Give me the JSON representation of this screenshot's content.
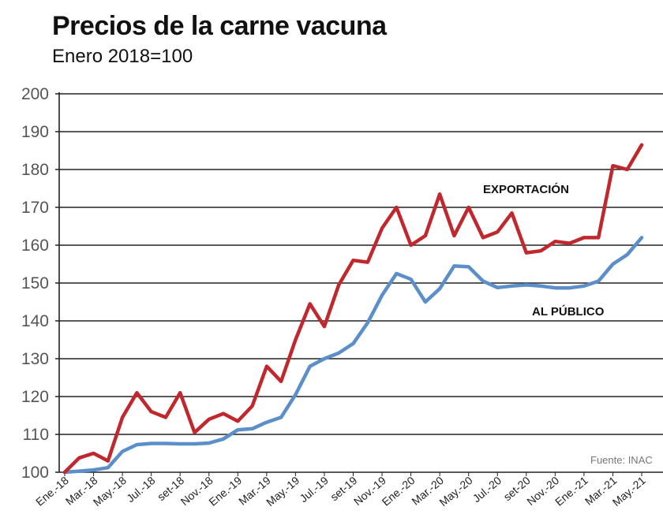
{
  "chart_data": {
    "type": "line",
    "title": "Precios de la carne vacuna",
    "subtitle": "Enero 2018=100",
    "source": "Fuente: INAC",
    "ylim": [
      100,
      200
    ],
    "yticks": [
      100,
      110,
      120,
      130,
      140,
      150,
      160,
      170,
      180,
      190,
      200
    ],
    "grid": true,
    "x_labels": [
      "Ene.-18",
      "Mar.-18",
      "May.-18",
      "Jul.-18",
      "set-18",
      "Nov.-18",
      "Ene.-19",
      "Mar.-19",
      "May.-19",
      "Jul.-19",
      "set-19",
      "Nov.-19",
      "Ene.-20",
      "Mar.-20",
      "May.-20",
      "Jul.-20",
      "set-20",
      "Nov.-20",
      "Ene.-21",
      "Mar.-21",
      "May.-21"
    ],
    "series": [
      {
        "name": "EXPORTACIÓN",
        "color": "#c0282d",
        "values": [
          100,
          103.8,
          105,
          103,
          114.5,
          121,
          116,
          114.5,
          121,
          110.5,
          114,
          115.5,
          113.5,
          117.5,
          128,
          124,
          135,
          144.5,
          138.5,
          149.5,
          156,
          155.5,
          164.5,
          170,
          160,
          162.5,
          173.5,
          162.5,
          170,
          162,
          163.5,
          168.5,
          158,
          158.5,
          161,
          160.5,
          162,
          162,
          181,
          180,
          186.5
        ]
      },
      {
        "name": "AL PÚBLICO",
        "color": "#5b8fc9",
        "values": [
          100,
          100.3,
          100.6,
          101.2,
          105.5,
          107.3,
          107.6,
          107.6,
          107.5,
          107.5,
          107.7,
          108.8,
          111.2,
          111.5,
          113.2,
          114.5,
          120.5,
          128,
          130,
          131.5,
          134,
          139.5,
          146.8,
          152.5,
          151,
          145,
          148.5,
          154.5,
          154.3,
          150.5,
          148.8,
          149.2,
          149.5,
          149.2,
          148.7,
          148.7,
          149.2,
          150.5,
          155,
          157.5,
          162
        ]
      }
    ]
  }
}
